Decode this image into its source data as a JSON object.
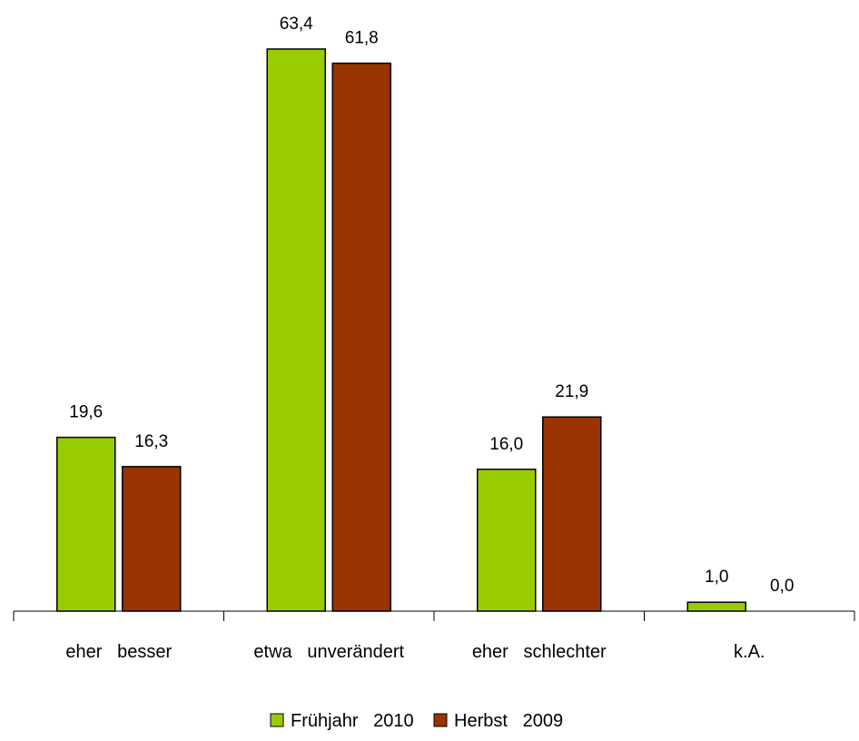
{
  "chart_data": {
    "type": "bar",
    "categories": [
      "eher   besser",
      "etwa   unverändert",
      "eher   schlechter",
      "k.A."
    ],
    "series": [
      {
        "name": "Frühjahr   2010",
        "values": [
          19.6,
          63.4,
          16.0,
          1.0
        ],
        "labels": [
          "19,6",
          "63,4",
          "16,0",
          "1,0"
        ],
        "color": "#99cc00"
      },
      {
        "name": "Herbst   2009",
        "values": [
          16.3,
          61.8,
          21.9,
          0.0
        ],
        "labels": [
          "16,3",
          "61,8",
          "21,9",
          "0,0"
        ],
        "color": "#993300"
      }
    ],
    "title": "",
    "xlabel": "",
    "ylabel": "",
    "ylim": [
      0,
      70
    ],
    "grid": false,
    "legend": "bottom-center"
  }
}
